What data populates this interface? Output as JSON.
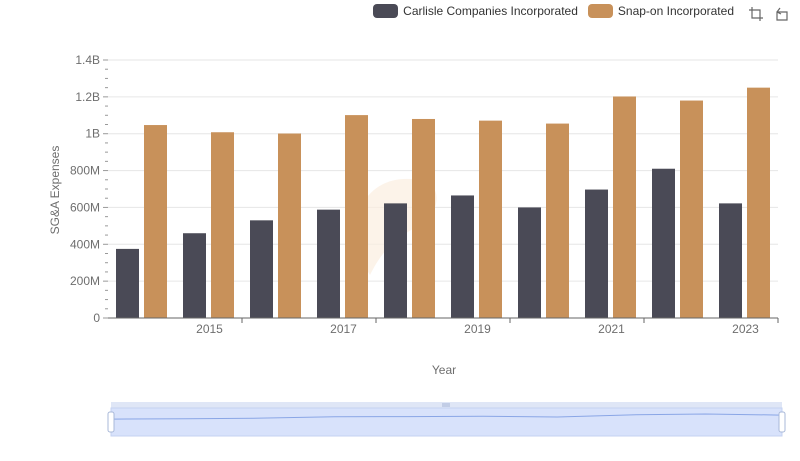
{
  "legend": {
    "items": [
      {
        "label": "Carlisle Companies Incorporated",
        "color": "#4a4a56"
      },
      {
        "label": "Snap-on Incorporated",
        "color": "#c8915a"
      }
    ]
  },
  "toolbox": {
    "icons": [
      "zoom-icon",
      "restore-icon"
    ]
  },
  "chart_data": {
    "type": "bar",
    "title": "",
    "xlabel": "Year",
    "ylabel": "SG&A Expenses",
    "categories": [
      "2014",
      "2015",
      "2016",
      "2017",
      "2018",
      "2019",
      "2020",
      "2021",
      "2022",
      "2023"
    ],
    "x_tick_labels": [
      "2015",
      "2017",
      "2019",
      "2021",
      "2023"
    ],
    "y_tick_labels": [
      "0",
      "200M",
      "400M",
      "600M",
      "800M",
      "1B",
      "1.2B",
      "1.4B"
    ],
    "ylim": [
      0,
      1400000000
    ],
    "grid": true,
    "legend_position": "top-right",
    "series": [
      {
        "name": "Carlisle Companies Incorporated",
        "color": "#4a4a56",
        "values": [
          375000000,
          460000000,
          530000000,
          588000000,
          622000000,
          665000000,
          600000000,
          697000000,
          810000000,
          622000000
        ]
      },
      {
        "name": "Snap-on Incorporated",
        "color": "#c8915a",
        "values": [
          1047000000,
          1008000000,
          1001000000,
          1101000000,
          1080000000,
          1071000000,
          1055000000,
          1202000000,
          1180000000,
          1250000000
        ]
      }
    ]
  }
}
